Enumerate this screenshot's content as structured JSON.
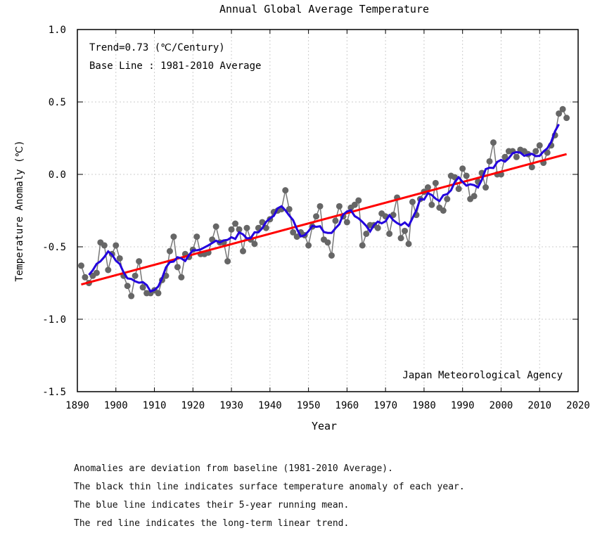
{
  "chart_data": {
    "type": "line",
    "title": "Annual Global Average Temperature",
    "xlabel": "Year",
    "ylabel": "Temperature Anomaly (℃)",
    "xlim": [
      1890,
      2020
    ],
    "ylim": [
      -1.5,
      1.0
    ],
    "xticks": [
      "1890",
      "1900",
      "1910",
      "1920",
      "1930",
      "1940",
      "1950",
      "1960",
      "1970",
      "1980",
      "1990",
      "2000",
      "2010",
      "2020"
    ],
    "yticks": [
      "-1.5",
      "-1.0",
      "-0.5",
      "0.0",
      "0.5",
      "1.0"
    ],
    "grid": true,
    "annotations": [
      "Trend=0.73 (℃/Century)",
      "Base Line : 1981-2010 Average"
    ],
    "credit": "Japan Meteorological Agency",
    "start_year": 1891,
    "series": [
      {
        "name": "Annual anomaly",
        "color": "#666666",
        "values": [
          -0.63,
          -0.71,
          -0.75,
          -0.7,
          -0.68,
          -0.47,
          -0.49,
          -0.66,
          -0.55,
          -0.49,
          -0.58,
          -0.7,
          -0.77,
          -0.84,
          -0.7,
          -0.6,
          -0.78,
          -0.82,
          -0.82,
          -0.8,
          -0.82,
          -0.73,
          -0.7,
          -0.53,
          -0.43,
          -0.64,
          -0.71,
          -0.55,
          -0.57,
          -0.52,
          -0.43,
          -0.55,
          -0.55,
          -0.54,
          -0.45,
          -0.36,
          -0.47,
          -0.47,
          -0.6,
          -0.38,
          -0.34,
          -0.38,
          -0.53,
          -0.37,
          -0.45,
          -0.48,
          -0.37,
          -0.33,
          -0.37,
          -0.31,
          -0.26,
          -0.25,
          -0.24,
          -0.11,
          -0.24,
          -0.4,
          -0.43,
          -0.4,
          -0.42,
          -0.49,
          -0.36,
          -0.29,
          -0.22,
          -0.45,
          -0.47,
          -0.56,
          -0.32,
          -0.22,
          -0.29,
          -0.33,
          -0.23,
          -0.21,
          -0.18,
          -0.49,
          -0.41,
          -0.35,
          -0.35,
          -0.37,
          -0.27,
          -0.29,
          -0.41,
          -0.28,
          -0.16,
          -0.44,
          -0.39,
          -0.48,
          -0.19,
          -0.28,
          -0.17,
          -0.12,
          -0.09,
          -0.21,
          -0.06,
          -0.23,
          -0.25,
          -0.17,
          -0.01,
          -0.02,
          -0.1,
          0.04,
          -0.01,
          -0.17,
          -0.15,
          -0.05,
          0.01,
          -0.09,
          0.09,
          0.22,
          0.0,
          0.0,
          0.12,
          0.16,
          0.16,
          0.12,
          0.17,
          0.16,
          0.14,
          0.05,
          0.16,
          0.2,
          0.08,
          0.15,
          0.2,
          0.27,
          0.42,
          0.45,
          0.39
        ]
      },
      {
        "name": "5-year running mean",
        "color": "#2200dd"
      },
      {
        "name": "Linear trend",
        "color": "#ff0000",
        "trend_per_century": 0.73,
        "endpoints": [
          [
            1891,
            -0.76
          ],
          [
            2017,
            0.14
          ]
        ]
      }
    ]
  },
  "notes": [
    "Anomalies are deviation from baseline (1981-2010 Average).",
    "The black thin line indicates surface temperature anomaly of each year.",
    "The blue line indicates their 5-year running mean.",
    "The red line indicates the long-term linear trend."
  ]
}
